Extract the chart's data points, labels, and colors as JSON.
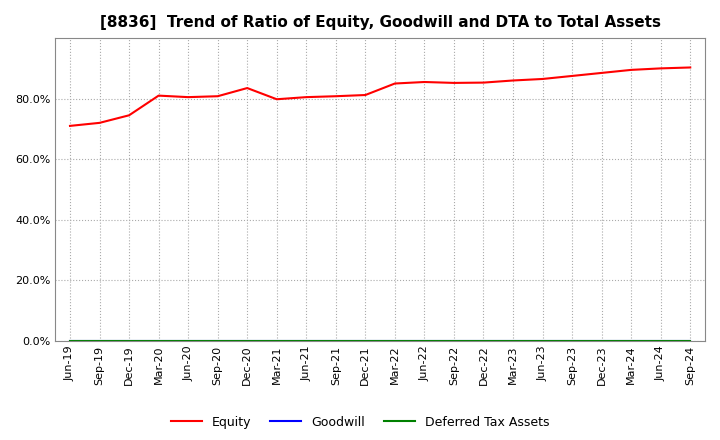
{
  "title": "[8836]  Trend of Ratio of Equity, Goodwill and DTA to Total Assets",
  "x_labels": [
    "Jun-19",
    "Sep-19",
    "Dec-19",
    "Mar-20",
    "Jun-20",
    "Sep-20",
    "Dec-20",
    "Mar-21",
    "Jun-21",
    "Sep-21",
    "Dec-21",
    "Mar-22",
    "Jun-22",
    "Sep-22",
    "Dec-22",
    "Mar-23",
    "Jun-23",
    "Sep-23",
    "Dec-23",
    "Mar-24",
    "Jun-24",
    "Sep-24"
  ],
  "equity": [
    71.0,
    72.0,
    74.5,
    81.0,
    80.5,
    80.8,
    83.5,
    79.8,
    80.5,
    80.8,
    81.2,
    85.0,
    85.5,
    85.2,
    85.3,
    86.0,
    86.5,
    87.5,
    88.5,
    89.5,
    90.0,
    90.3
  ],
  "goodwill": [
    0.0,
    0.0,
    0.0,
    0.0,
    0.0,
    0.0,
    0.0,
    0.0,
    0.0,
    0.0,
    0.0,
    0.0,
    0.0,
    0.0,
    0.0,
    0.0,
    0.0,
    0.0,
    0.0,
    0.0,
    0.0,
    0.0
  ],
  "dta": [
    0.0,
    0.0,
    0.0,
    0.0,
    0.0,
    0.0,
    0.0,
    0.0,
    0.0,
    0.0,
    0.0,
    0.0,
    0.0,
    0.0,
    0.0,
    0.0,
    0.0,
    0.0,
    0.0,
    0.0,
    0.0,
    0.0
  ],
  "equity_color": "#ff0000",
  "goodwill_color": "#0000ff",
  "dta_color": "#008000",
  "ylim": [
    0,
    100
  ],
  "yticks": [
    0,
    20,
    40,
    60,
    80
  ],
  "background_color": "#ffffff",
  "plot_bg_color": "#ffffff",
  "grid_color": "#aaaaaa",
  "title_fontsize": 11,
  "legend_labels": [
    "Equity",
    "Goodwill",
    "Deferred Tax Assets"
  ]
}
